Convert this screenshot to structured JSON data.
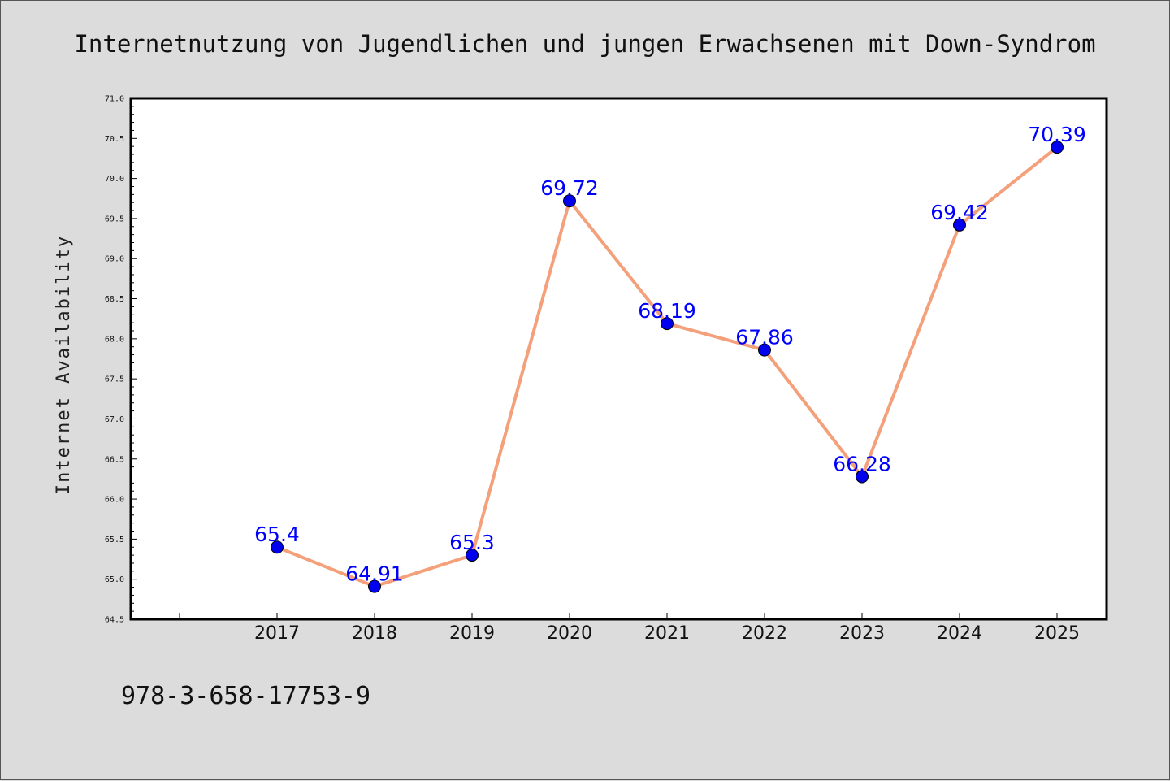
{
  "chart_data": {
    "type": "line",
    "title": "Internetnutzung von Jugendlichen und jungen Erwachsenen mit Down-Syndrom",
    "xlabel": "",
    "ylabel": "Internet Availability",
    "categories": [
      "2017",
      "2018",
      "2019",
      "2020",
      "2021",
      "2022",
      "2023",
      "2024",
      "2025"
    ],
    "series": [
      {
        "values": [
          65.4,
          64.91,
          65.3,
          69.72,
          68.19,
          67.86,
          66.28,
          69.42,
          70.39
        ],
        "labels": [
          "65.4",
          "64.91",
          "65.3",
          "69.72",
          "68.19",
          "67.86",
          "66.28",
          "69.42",
          "70.39"
        ]
      }
    ],
    "ylim": [
      64.5,
      71.0
    ],
    "yticks": [
      "64.5",
      "65.0",
      "65.5",
      "66.0",
      "66.5",
      "67.0",
      "67.5",
      "68.0",
      "68.5",
      "69.0",
      "69.5",
      "70.0",
      "70.5",
      "71.0"
    ],
    "grid": false,
    "legend": "none",
    "colors": {
      "line": "#f4a07a",
      "marker": "#0000ee",
      "label": "#0000ff",
      "background": "#dcdcdc",
      "plot_bg": "#ffffff"
    }
  },
  "footer": {
    "isbn": "978-3-658-17753-9"
  }
}
